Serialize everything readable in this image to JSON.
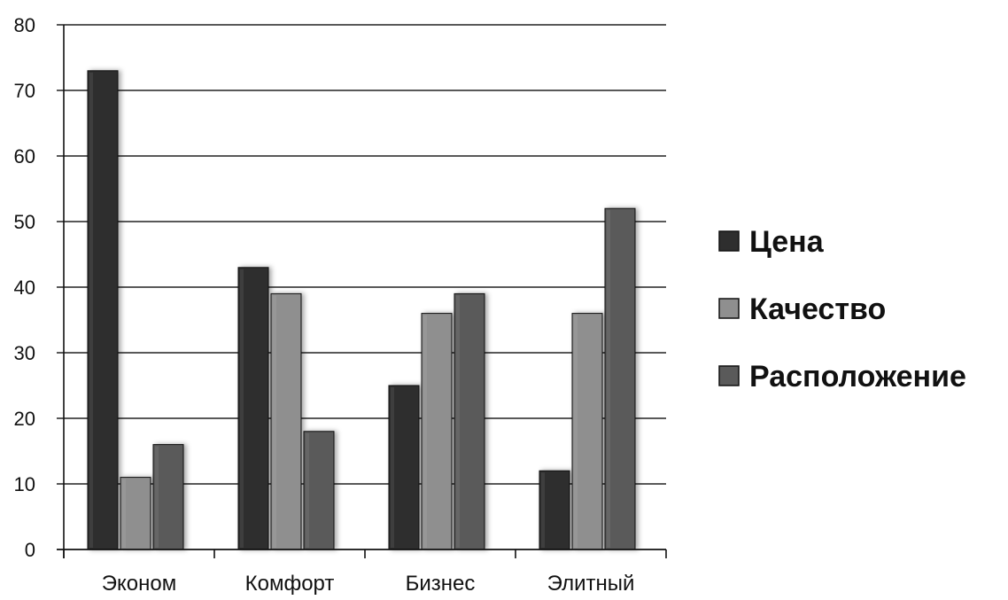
{
  "chart_data": {
    "type": "bar",
    "categories": [
      "Эконом",
      "Комфорт",
      "Бизнес",
      "Элитный"
    ],
    "series": [
      {
        "name": "Цена",
        "values": [
          73,
          43,
          25,
          12
        ],
        "color": "#2e2e2e"
      },
      {
        "name": "Качество",
        "values": [
          11,
          39,
          36,
          36
        ],
        "color": "#8f8f8f"
      },
      {
        "name": "Расположение",
        "values": [
          16,
          18,
          39,
          52
        ],
        "color": "#5a5a5a"
      }
    ],
    "ylim": [
      0,
      80
    ],
    "yticks": [
      "0",
      "10",
      "20",
      "30",
      "40",
      "50",
      "60",
      "70",
      "80"
    ],
    "grid": true,
    "legend_position": "right"
  }
}
